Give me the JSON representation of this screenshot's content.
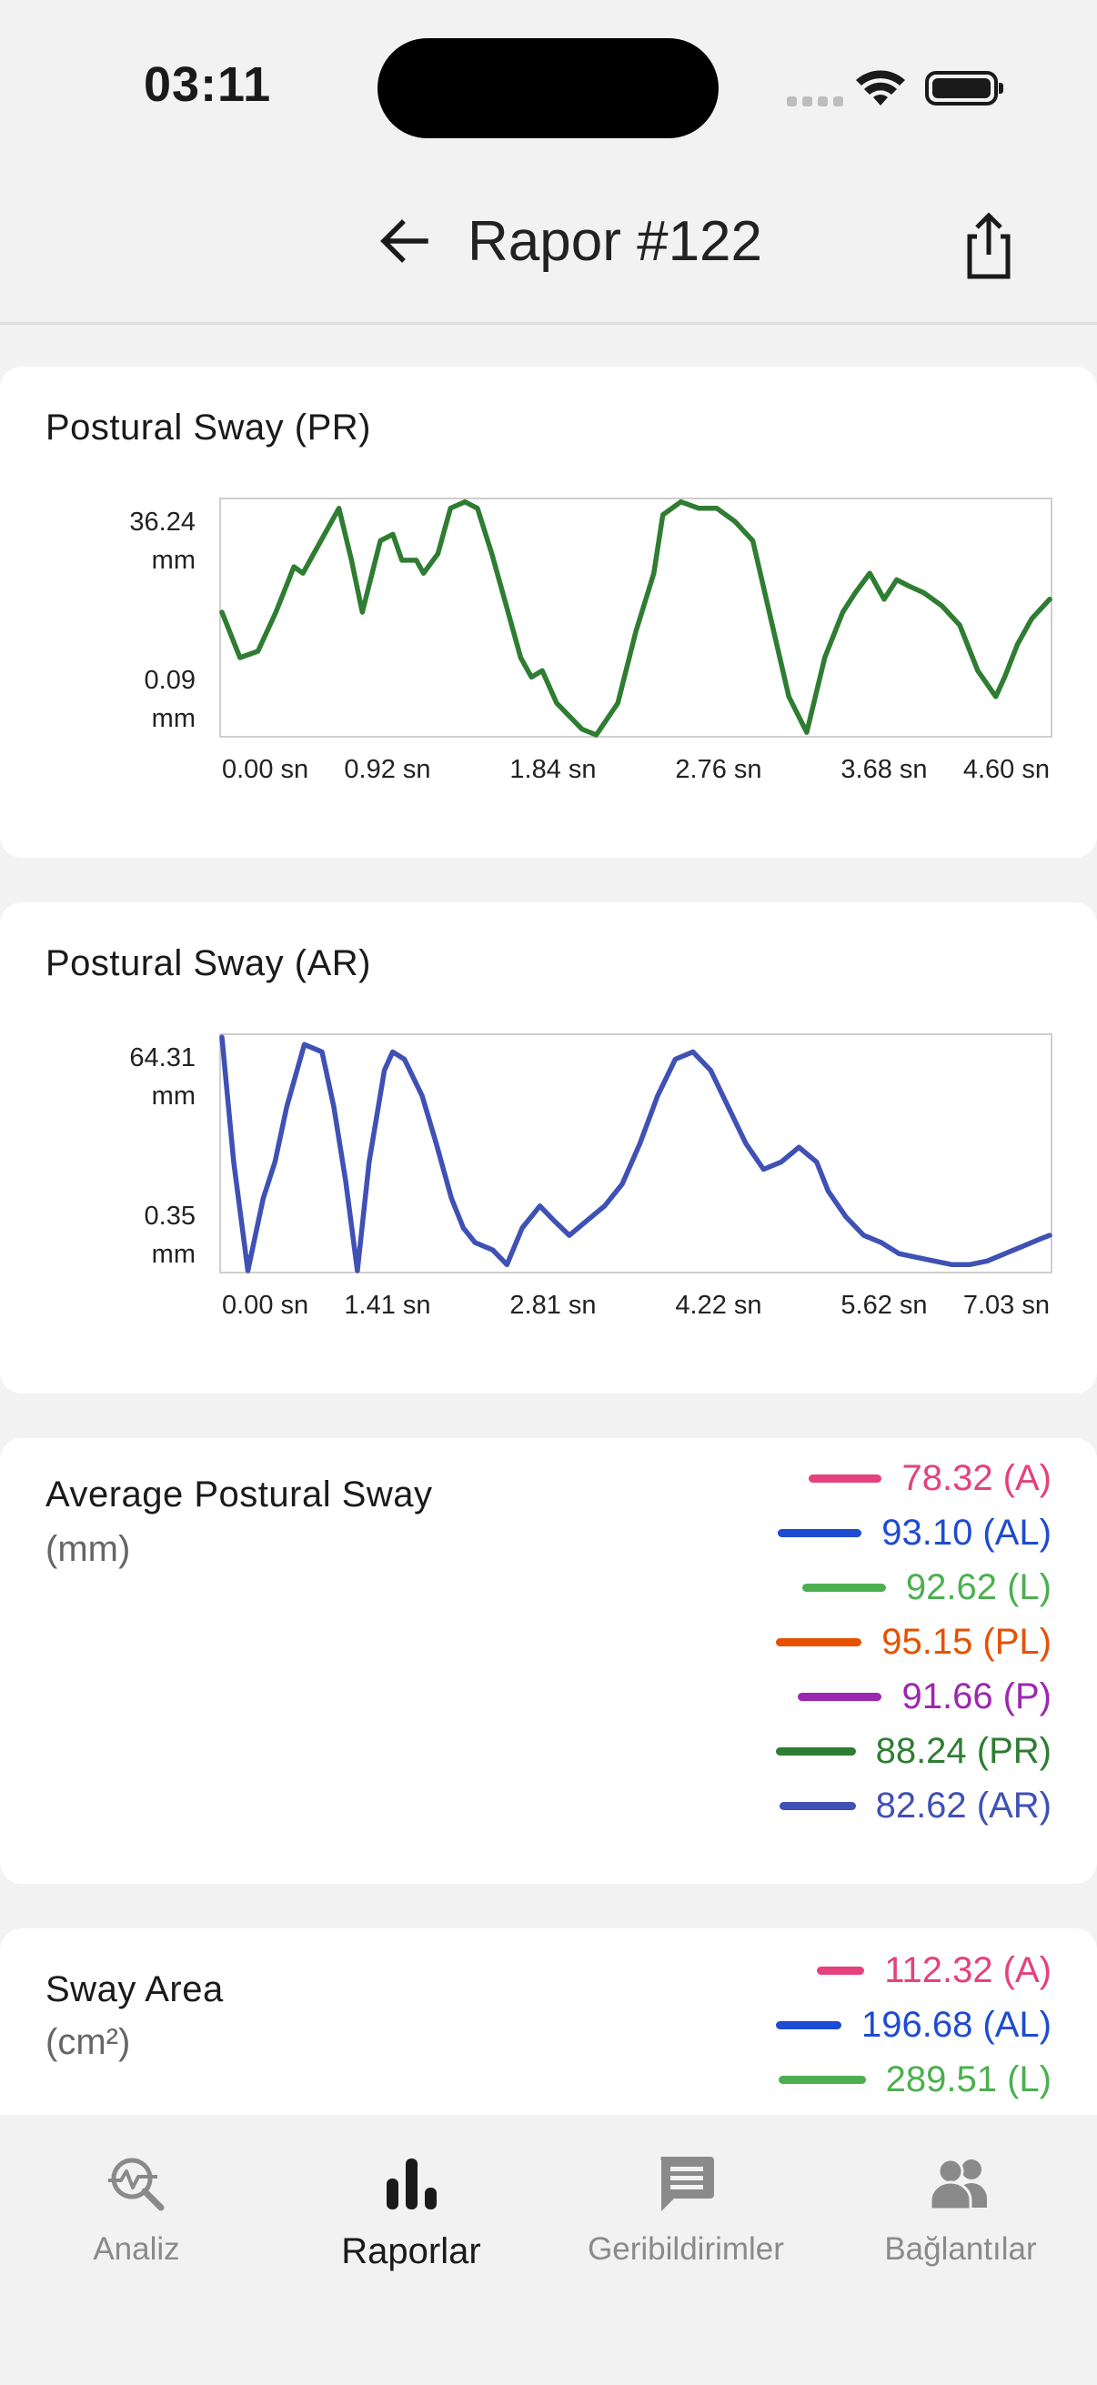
{
  "status": {
    "time": "03:11"
  },
  "header": {
    "title": "Rapor #122"
  },
  "charts": {
    "pr": {
      "title": "Postural Sway (PR)",
      "y_max_label": "36.24",
      "y_min_label": "0.09",
      "y_unit": "mm",
      "x_labels": [
        "0.00 sn",
        "0.92 sn",
        "1.84 sn",
        "2.76 sn",
        "3.68 sn",
        "4.60 sn"
      ],
      "color": "#2e7d32"
    },
    "ar": {
      "title": "Postural Sway (AR)",
      "y_max_label": "64.31",
      "y_min_label": "0.35",
      "y_unit": "mm",
      "x_labels": [
        "0.00 sn",
        "1.41 sn",
        "2.81 sn",
        "4.22 sn",
        "5.62 sn",
        "7.03 sn"
      ],
      "color": "#3f51b5"
    }
  },
  "chart_data": [
    {
      "type": "line",
      "title": "Postural Sway (PR)",
      "xlabel": "",
      "ylabel": "mm",
      "x_unit": "sn",
      "xlim": [
        0,
        4.6
      ],
      "ylim": [
        0.09,
        36.24
      ],
      "series": [
        {
          "color": "#2e7d32",
          "x": [
            0,
            0.1,
            0.2,
            0.3,
            0.4,
            0.45,
            0.55,
            0.65,
            0.72,
            0.78,
            0.88,
            0.95,
            1.0,
            1.08,
            1.12,
            1.2,
            1.27,
            1.35,
            1.42,
            1.5,
            1.58,
            1.66,
            1.72,
            1.78,
            1.86,
            1.93,
            2.0,
            2.08,
            2.2,
            2.3,
            2.4,
            2.45,
            2.55,
            2.65,
            2.75,
            2.8,
            2.85,
            2.95,
            3.05,
            3.15,
            3.25,
            3.35,
            3.45,
            3.52,
            3.6,
            3.68,
            3.75,
            3.82,
            3.9,
            4.0,
            4.1,
            4.2,
            4.3,
            4.35,
            4.42,
            4.5,
            4.6
          ],
          "y": [
            19,
            12,
            13,
            19,
            26,
            25,
            30,
            35,
            27,
            19,
            30,
            31,
            27,
            27,
            25,
            28,
            35,
            36,
            35,
            28,
            20,
            12,
            9,
            10,
            5,
            3,
            1,
            0.09,
            5,
            16,
            25,
            34,
            36,
            35,
            35,
            34,
            33,
            30,
            18,
            6,
            0.5,
            12,
            19,
            22,
            25,
            21,
            24,
            23,
            22,
            20,
            17,
            10,
            6,
            9,
            14,
            18,
            21
          ]
        }
      ]
    },
    {
      "type": "line",
      "title": "Postural Sway (AR)",
      "xlabel": "",
      "ylabel": "mm",
      "x_unit": "sn",
      "xlim": [
        0,
        7.03
      ],
      "ylim": [
        0.35,
        64.31
      ],
      "series": [
        {
          "color": "#3f51b5",
          "x": [
            0,
            0.1,
            0.22,
            0.35,
            0.45,
            0.55,
            0.7,
            0.85,
            0.95,
            1.05,
            1.15,
            1.25,
            1.38,
            1.45,
            1.55,
            1.7,
            1.82,
            1.95,
            2.05,
            2.15,
            2.3,
            2.42,
            2.55,
            2.7,
            2.82,
            2.95,
            3.1,
            3.25,
            3.4,
            3.55,
            3.7,
            3.85,
            4.0,
            4.15,
            4.3,
            4.45,
            4.6,
            4.75,
            4.9,
            5.05,
            5.15,
            5.3,
            5.45,
            5.6,
            5.75,
            5.9,
            6.05,
            6.2,
            6.35,
            6.5,
            6.65,
            6.8,
            6.95,
            7.03
          ],
          "y": [
            64,
            30,
            0.35,
            20,
            30,
            45,
            62,
            60,
            45,
            25,
            0.35,
            30,
            55,
            60,
            58,
            48,
            35,
            20,
            12,
            8,
            6,
            2,
            12,
            18,
            14,
            10,
            14,
            18,
            24,
            35,
            48,
            58,
            60,
            55,
            45,
            35,
            28,
            30,
            34,
            30,
            22,
            15,
            10,
            8,
            5,
            4,
            3,
            2,
            2,
            3,
            5,
            7,
            9,
            10
          ]
        }
      ]
    }
  ],
  "average_sway": {
    "title": "Average Postural Sway",
    "unit": "(mm)",
    "items": [
      {
        "value": "78.32 (A)",
        "color": "#e5417c"
      },
      {
        "value": "93.10 (AL)",
        "color": "#1e4bd2"
      },
      {
        "value": "92.62 (L)",
        "color": "#4caf50"
      },
      {
        "value": "95.15 (PL)",
        "color": "#e65100"
      },
      {
        "value": "91.66 (P)",
        "color": "#9c27b0"
      },
      {
        "value": "88.24 (PR)",
        "color": "#2e7d32"
      },
      {
        "value": "82.62 (AR)",
        "color": "#3f51b5"
      }
    ]
  },
  "sway_area": {
    "title": "Sway Area",
    "unit": "(cm²)",
    "items": [
      {
        "value": "112.32 (A)",
        "color": "#e5417c"
      },
      {
        "value": "196.68 (AL)",
        "color": "#1e4bd2"
      },
      {
        "value": "289.51 (L)",
        "color": "#4caf50"
      }
    ]
  },
  "nav": {
    "items": [
      {
        "label": "Analiz",
        "icon": "analysis-icon",
        "active": false
      },
      {
        "label": "Raporlar",
        "icon": "bar-chart-icon",
        "active": true
      },
      {
        "label": "Geribildirimler",
        "icon": "feedback-icon",
        "active": false
      },
      {
        "label": "Bağlantılar",
        "icon": "people-icon",
        "active": false
      }
    ]
  }
}
